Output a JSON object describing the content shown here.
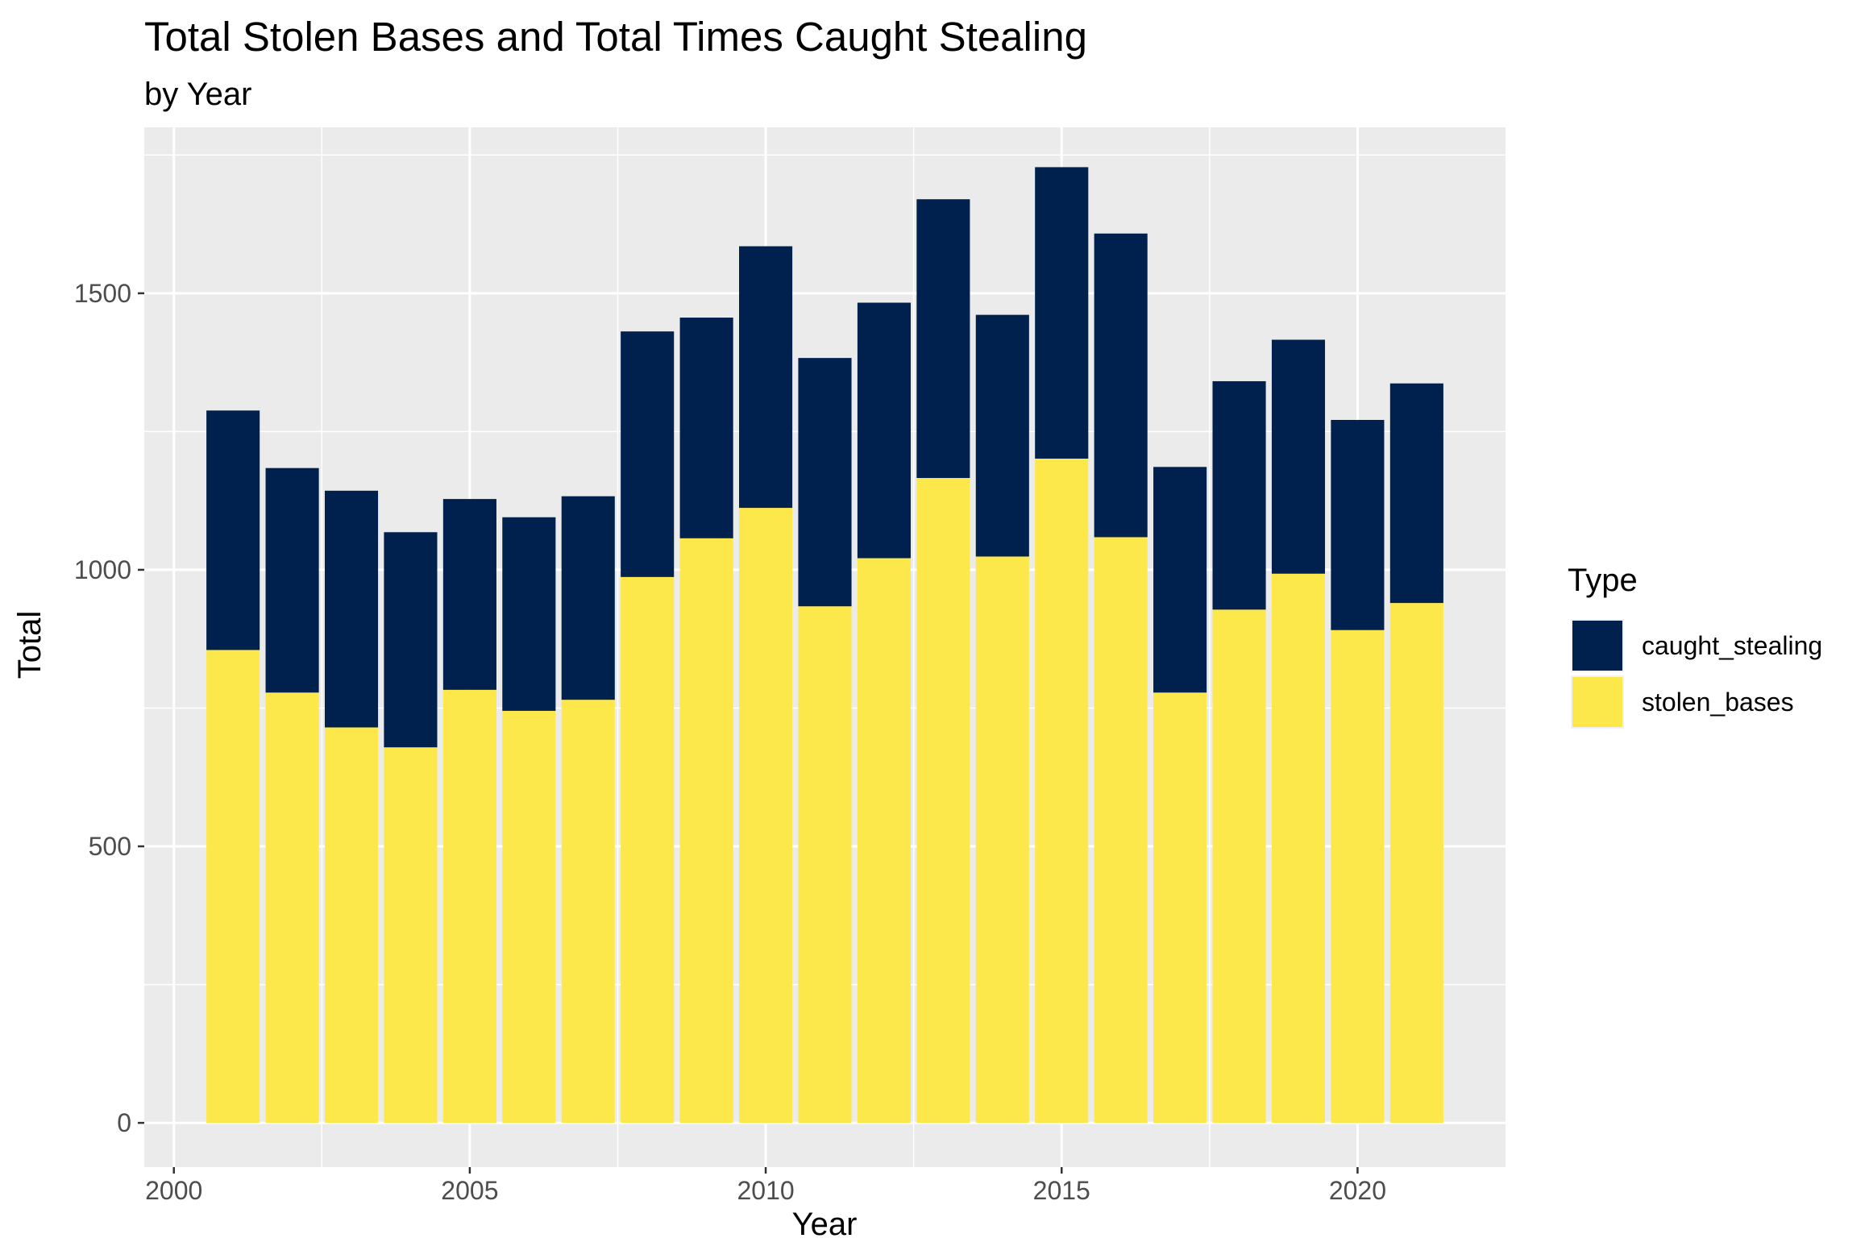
{
  "chart_data": {
    "type": "bar",
    "stacked": true,
    "title": "Total Stolen Bases and Total Times Caught Stealing",
    "subtitle": "by Year",
    "xlabel": "Year",
    "ylabel": "Total",
    "x": [
      2001,
      2002,
      2003,
      2004,
      2005,
      2006,
      2007,
      2008,
      2009,
      2010,
      2011,
      2012,
      2013,
      2014,
      2015,
      2016,
      2017,
      2018,
      2019,
      2020,
      2021
    ],
    "series": [
      {
        "name": "stolen_bases",
        "color": "#FDE84C",
        "values": [
          855,
          778,
          715,
          679,
          783,
          745,
          765,
          987,
          1057,
          1112,
          934,
          1021,
          1166,
          1024,
          1201,
          1059,
          778,
          928,
          993,
          891,
          940
        ]
      },
      {
        "name": "caught_stealing",
        "color": "#00204D",
        "values": [
          433,
          406,
          428,
          389,
          345,
          350,
          368,
          444,
          399,
          473,
          449,
          462,
          504,
          437,
          527,
          549,
          408,
          413,
          423,
          380,
          397
        ]
      }
    ],
    "xlim": [
      1999.5,
      2022.5
    ],
    "ylim": [
      -80,
      1800
    ],
    "xticks": [
      2000,
      2005,
      2010,
      2015,
      2020
    ],
    "yticks": [
      0,
      500,
      1000,
      1500
    ],
    "grid": true,
    "legend_title": "Type",
    "legend_position": "right",
    "panel_color": "#EBEBEB"
  }
}
